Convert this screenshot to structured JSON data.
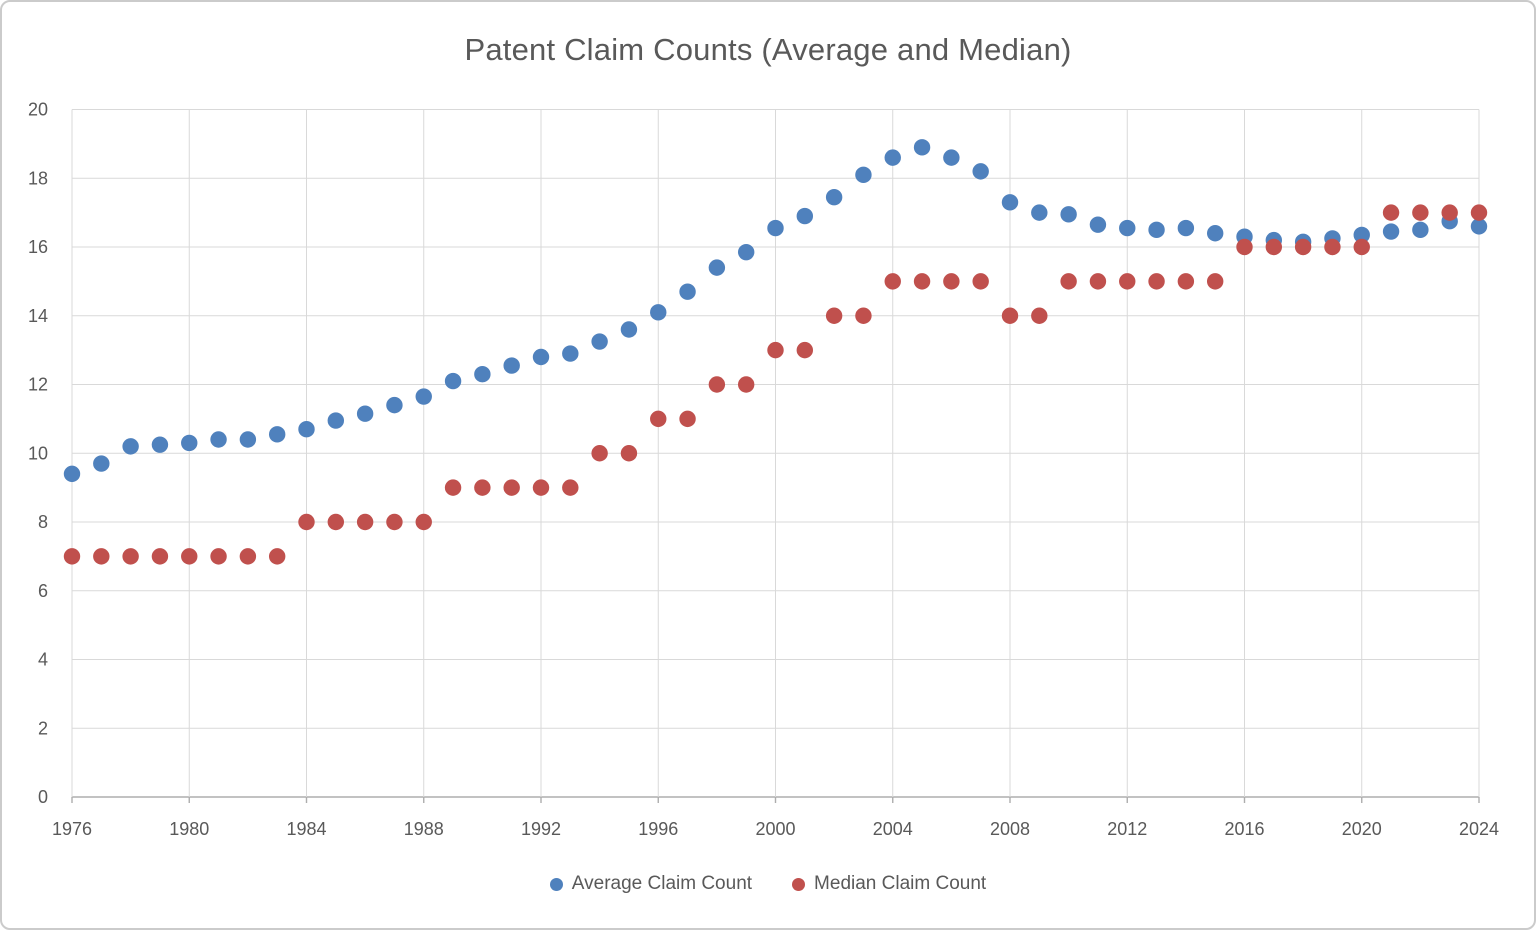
{
  "chart_data": {
    "type": "scatter",
    "title": "Patent Claim Counts (Average and Median)",
    "xlabel": "",
    "ylabel": "",
    "xlim": [
      1976,
      2024
    ],
    "ylim": [
      0,
      20
    ],
    "grid": true,
    "legend_position": "bottom",
    "x": [
      1976,
      1977,
      1978,
      1979,
      1980,
      1981,
      1982,
      1983,
      1984,
      1985,
      1986,
      1987,
      1988,
      1989,
      1990,
      1991,
      1992,
      1993,
      1994,
      1995,
      1996,
      1997,
      1998,
      1999,
      2000,
      2001,
      2002,
      2003,
      2004,
      2005,
      2006,
      2007,
      2008,
      2009,
      2010,
      2011,
      2012,
      2013,
      2014,
      2015,
      2016,
      2017,
      2018,
      2019,
      2020,
      2021,
      2022,
      2023,
      2024
    ],
    "series": [
      {
        "name": "Average Claim Count",
        "color": "#4F81BD",
        "values": [
          9.4,
          9.7,
          10.2,
          10.25,
          10.3,
          10.4,
          10.4,
          10.55,
          10.7,
          10.95,
          11.15,
          11.4,
          11.65,
          12.1,
          12.3,
          12.55,
          12.8,
          12.9,
          13.25,
          13.6,
          14.1,
          14.7,
          15.4,
          15.85,
          16.55,
          16.9,
          17.45,
          18.1,
          18.6,
          18.9,
          18.6,
          18.2,
          17.3,
          17.0,
          16.95,
          16.65,
          16.55,
          16.5,
          16.55,
          16.4,
          16.3,
          16.2,
          16.15,
          16.25,
          16.35,
          16.45,
          16.5,
          16.75,
          16.6
        ]
      },
      {
        "name": "Median Claim Count",
        "color": "#C0504D",
        "values": [
          7,
          7,
          7,
          7,
          7,
          7,
          7,
          7,
          8,
          8,
          8,
          8,
          8,
          9,
          9,
          9,
          9,
          9,
          10,
          10,
          11,
          11,
          12,
          12,
          13,
          13,
          14,
          14,
          15,
          15,
          15,
          15,
          14,
          14,
          15,
          15,
          15,
          15,
          15,
          15,
          16,
          16,
          16,
          16,
          16,
          17,
          17,
          17,
          17
        ]
      }
    ]
  },
  "axes": {
    "x_ticks": [
      "1976",
      "1980",
      "1984",
      "1988",
      "1992",
      "1996",
      "2000",
      "2004",
      "2008",
      "2012",
      "2016",
      "2020",
      "2024"
    ],
    "y_ticks": [
      "0",
      "2",
      "4",
      "6",
      "8",
      "10",
      "12",
      "14",
      "16",
      "18",
      "20"
    ]
  },
  "legend": {
    "items": [
      {
        "label": "Average Claim Count"
      },
      {
        "label": "Median Claim Count"
      }
    ]
  },
  "colors": {
    "gridline": "#D9D9D9",
    "axis_line": "#ADADAD",
    "text": "#595959",
    "border": "#CBCBCB",
    "average_series": "#4F81BD",
    "median_series": "#C0504D"
  }
}
